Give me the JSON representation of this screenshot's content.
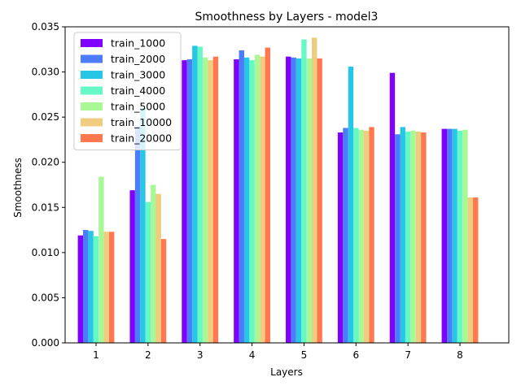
{
  "chart_data": {
    "type": "bar",
    "title": "Smoothness by Layers - model3",
    "xlabel": "Layers",
    "ylabel": "Smoothness",
    "categories": [
      "1",
      "2",
      "3",
      "4",
      "5",
      "6",
      "7",
      "8"
    ],
    "ylim": [
      0,
      0.035
    ],
    "yticks": [
      "0.000",
      "0.005",
      "0.010",
      "0.015",
      "0.020",
      "0.025",
      "0.030",
      "0.035"
    ],
    "grid": false,
    "legend_position": "top-left",
    "series": [
      {
        "name": "train_1000",
        "color": "#8000ff",
        "values": [
          0.0119,
          0.0169,
          0.0313,
          0.0314,
          0.0317,
          0.0233,
          0.0299,
          0.0237
        ]
      },
      {
        "name": "train_2000",
        "color": "#4c7cf8",
        "values": [
          0.0125,
          0.024,
          0.0314,
          0.0324,
          0.0316,
          0.0238,
          0.0231,
          0.0237
        ]
      },
      {
        "name": "train_3000",
        "color": "#28c6e6",
        "values": [
          0.0124,
          0.026,
          0.0329,
          0.0316,
          0.0315,
          0.0306,
          0.0239,
          0.0237
        ]
      },
      {
        "name": "train_4000",
        "color": "#66f8c6",
        "values": [
          0.0118,
          0.0156,
          0.0328,
          0.0313,
          0.0336,
          0.0238,
          0.0234,
          0.0235
        ]
      },
      {
        "name": "train_5000",
        "color": "#a8f896",
        "values": [
          0.0184,
          0.0175,
          0.0316,
          0.0319,
          0.0315,
          0.0236,
          0.0235,
          0.0236
        ]
      },
      {
        "name": "train_10000",
        "color": "#f0cc7e",
        "values": [
          0.0123,
          0.0165,
          0.0313,
          0.0317,
          0.0338,
          0.0235,
          0.0234,
          0.0161
        ]
      },
      {
        "name": "train_20000",
        "color": "#ff7850",
        "values": [
          0.0123,
          0.0115,
          0.0317,
          0.0327,
          0.0315,
          0.0239,
          0.0233,
          0.0161
        ]
      }
    ]
  }
}
